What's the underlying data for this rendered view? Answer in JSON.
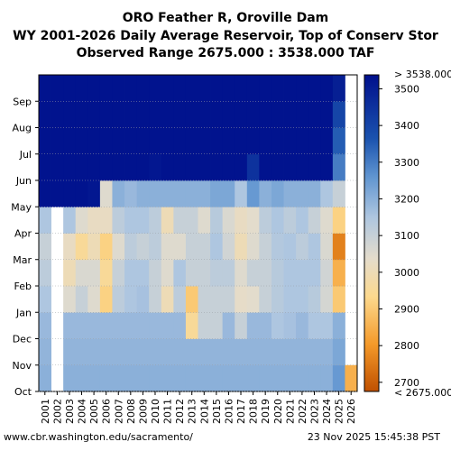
{
  "title_line1": "ORO Feather R, Oroville Dam",
  "title_line2": "WY 2001-2026 Daily Average Reservoir, Top of Conserv Stor",
  "title_line3": "Observed Range 2675.000 : 3538.000 TAF",
  "footer_left": "www.cbr.washington.edu/sacramento/",
  "footer_right": "23 Nov 2025 15:45:38 PST",
  "chart_data": {
    "type": "heatmap",
    "title": "ORO Feather R, Oroville Dam",
    "x_categories": [
      "2001",
      "2002",
      "2003",
      "2004",
      "2005",
      "2006",
      "2007",
      "2008",
      "2009",
      "2010",
      "2011",
      "2012",
      "2013",
      "2014",
      "2015",
      "2016",
      "2017",
      "2018",
      "2019",
      "2020",
      "2021",
      "2022",
      "2023",
      "2024",
      "2025",
      "2026"
    ],
    "y_categories": [
      "Oct",
      "Nov",
      "Dec",
      "Jan",
      "Feb",
      "Mar",
      "Apr",
      "May",
      "Jun",
      "Jul",
      "Aug",
      "Sep"
    ],
    "months": [
      "Oct",
      "Nov",
      "Dec",
      "Jan",
      "Feb",
      "Mar",
      "Apr",
      "May",
      "Jun",
      "Jul",
      "Aug",
      "Sep"
    ],
    "values": [
      [
        3200,
        3190,
        3180,
        3150,
        3120,
        3100,
        3150,
        3530,
        3530,
        3530,
        3530,
        3530
      ],
      [
        null,
        null,
        null,
        null,
        null,
        null,
        null,
        3530,
        3530,
        3530,
        3530,
        3530
      ],
      [
        3200,
        3190,
        3180,
        3050,
        3000,
        3020,
        3150,
        3530,
        3530,
        3530,
        3530,
        3530
      ],
      [
        3200,
        3190,
        3180,
        3100,
        3060,
        2950,
        3050,
        3530,
        3530,
        3530,
        3530,
        3530
      ],
      [
        3200,
        3190,
        3180,
        3050,
        3060,
        3000,
        3020,
        3520,
        3530,
        3530,
        3530,
        3530
      ],
      [
        3200,
        3190,
        3180,
        2920,
        2950,
        2920,
        3020,
        3050,
        3530,
        3530,
        3530,
        3530
      ],
      [
        3200,
        3190,
        3180,
        3120,
        3100,
        3050,
        3120,
        3200,
        3530,
        3530,
        3530,
        3530
      ],
      [
        3200,
        3190,
        3180,
        3150,
        3150,
        3120,
        3150,
        3180,
        3530,
        3530,
        3530,
        3530
      ],
      [
        3200,
        3190,
        3180,
        3160,
        3150,
        3100,
        3150,
        3200,
        3530,
        3530,
        3530,
        3530
      ],
      [
        3200,
        3190,
        3180,
        3100,
        3100,
        3120,
        3120,
        3200,
        3520,
        3530,
        3530,
        3530
      ],
      [
        3200,
        3190,
        3180,
        3000,
        3050,
        3050,
        3000,
        3200,
        3530,
        3530,
        3530,
        3530
      ],
      [
        3200,
        3190,
        3180,
        3120,
        3150,
        3050,
        3100,
        3200,
        3530,
        3530,
        3530,
        3530
      ],
      [
        3200,
        3190,
        2950,
        2900,
        3100,
        3100,
        3100,
        3200,
        3530,
        3530,
        3530,
        3530
      ],
      [
        3200,
        3190,
        3100,
        3100,
        3100,
        3100,
        3050,
        3200,
        3530,
        3530,
        3530,
        3530
      ],
      [
        3200,
        3190,
        3100,
        3100,
        3120,
        3150,
        3130,
        3220,
        3530,
        3530,
        3530,
        3530
      ],
      [
        3200,
        3190,
        3180,
        3100,
        3120,
        3080,
        3060,
        3220,
        3530,
        3530,
        3530,
        3530
      ],
      [
        3200,
        3190,
        3100,
        3030,
        3050,
        3000,
        3020,
        3150,
        3530,
        3530,
        3530,
        3530
      ],
      [
        3200,
        3190,
        3180,
        3040,
        3100,
        3050,
        3040,
        3250,
        3450,
        3530,
        3530,
        3530
      ],
      [
        3200,
        3190,
        3180,
        3100,
        3100,
        3100,
        3120,
        3200,
        3530,
        3530,
        3530,
        3530
      ],
      [
        3200,
        3190,
        3150,
        3130,
        3130,
        3140,
        3150,
        3220,
        3530,
        3530,
        3530,
        3530
      ],
      [
        3200,
        3190,
        3160,
        3150,
        3150,
        3150,
        3120,
        3200,
        3530,
        3530,
        3530,
        3530
      ],
      [
        3200,
        3190,
        3180,
        3150,
        3150,
        3120,
        3150,
        3200,
        3530,
        3530,
        3530,
        3530
      ],
      [
        3200,
        3190,
        3150,
        3130,
        3150,
        3150,
        3100,
        3200,
        3530,
        3530,
        3530,
        3530
      ],
      [
        3200,
        3190,
        3150,
        3070,
        3080,
        3060,
        3050,
        3150,
        3530,
        3530,
        3530,
        3530
      ],
      [
        3250,
        3220,
        3200,
        2900,
        2850,
        2760,
        2920,
        3100,
        3300,
        3350,
        3400,
        3500
      ],
      [
        2850,
        null,
        null,
        null,
        null,
        null,
        null,
        null,
        null,
        null,
        null,
        null
      ]
    ],
    "colorbar": {
      "ticks": [
        2700,
        2800,
        2900,
        3000,
        3100,
        3200,
        3300,
        3400,
        3500
      ],
      "max_label": "> 3538.000",
      "min_label": "< 2675.000",
      "range": [
        2675,
        3538
      ]
    }
  }
}
